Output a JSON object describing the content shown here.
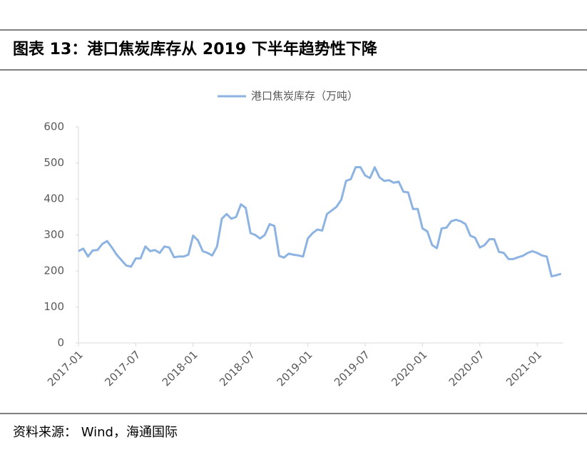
{
  "chart_data": {
    "type": "line",
    "title": "图表 13：港口焦炭库存从 2019 下半年趋势性下降",
    "source": "资料来源： Wind，海通国际",
    "categories": [
      "2017-01",
      null,
      null,
      null,
      null,
      null,
      null,
      null,
      null,
      null,
      null,
      null,
      "2017-07",
      null,
      null,
      null,
      null,
      null,
      null,
      null,
      null,
      null,
      null,
      null,
      "2018-01",
      null,
      null,
      null,
      null,
      null,
      null,
      null,
      null,
      null,
      null,
      null,
      "2018-07",
      null,
      null,
      null,
      null,
      null,
      null,
      null,
      null,
      null,
      null,
      null,
      "2019-01",
      null,
      null,
      null,
      null,
      null,
      null,
      null,
      null,
      null,
      null,
      null,
      "2019-07",
      null,
      null,
      null,
      null,
      null,
      null,
      null,
      null,
      null,
      null,
      null,
      "2020-01",
      null,
      null,
      null,
      null,
      null,
      null,
      null,
      null,
      null,
      null,
      null,
      "2020-07",
      null,
      null,
      null,
      null,
      null,
      null,
      null,
      null,
      null,
      null,
      null,
      "2021-01",
      null,
      null,
      null,
      null,
      null
    ],
    "series": [
      {
        "name": "港口焦炭库存（万吨）",
        "color": "#8db3e2",
        "values": [
          255,
          262,
          240,
          257,
          258,
          275,
          283,
          265,
          245,
          230,
          215,
          212,
          235,
          235,
          268,
          255,
          258,
          250,
          268,
          265,
          238,
          240,
          240,
          245,
          298,
          285,
          255,
          250,
          243,
          268,
          345,
          358,
          345,
          350,
          385,
          375,
          305,
          300,
          290,
          300,
          330,
          325,
          242,
          237,
          248,
          245,
          243,
          240,
          290,
          305,
          315,
          312,
          358,
          368,
          378,
          398,
          450,
          455,
          488,
          488,
          465,
          458,
          488,
          460,
          450,
          452,
          445,
          448,
          420,
          418,
          372,
          372,
          318,
          310,
          272,
          263,
          318,
          320,
          338,
          342,
          338,
          330,
          298,
          292,
          265,
          272,
          288,
          288,
          253,
          250,
          233,
          233,
          238,
          242,
          250,
          255,
          250,
          243,
          240,
          185,
          188,
          192
        ]
      }
    ],
    "ylim": [
      0,
      600
    ],
    "yticks": [
      0,
      100,
      200,
      300,
      400,
      500,
      600
    ],
    "grid": false,
    "legend": "top"
  }
}
